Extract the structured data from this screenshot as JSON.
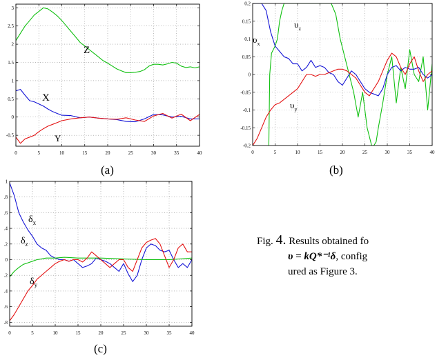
{
  "colors": {
    "x": "#1515d6",
    "y": "#e41414",
    "z": "#10c010",
    "grid": "#8c8c8c",
    "axes": "#000000"
  },
  "panels": [
    {
      "caption": "(a)",
      "chart_data": {
        "type": "line",
        "xlim": [
          0,
          40
        ],
        "ylim": [
          -0.8,
          3.1
        ],
        "xticks": [
          0,
          5,
          10,
          15,
          20,
          25,
          30,
          35,
          40
        ],
        "yticks": [
          -0.5,
          0,
          0.5,
          1,
          1.5,
          2,
          2.5,
          3
        ],
        "yticklabels": [
          "-0.5",
          "0",
          "0.5",
          "1",
          "1.5",
          "2",
          "2.5",
          "3"
        ],
        "grid": true,
        "series": [
          {
            "name": "Z",
            "color": "z",
            "x": [
              0,
              1,
              2,
              3,
              4,
              5,
              6,
              7,
              8,
              9,
              10,
              11,
              12,
              13,
              14,
              15,
              16,
              17,
              18,
              19,
              20,
              21,
              22,
              23,
              24,
              25,
              26,
              27,
              28,
              29,
              30,
              31,
              32,
              33,
              34,
              35,
              36,
              37,
              38,
              39,
              40
            ],
            "y": [
              2.1,
              2.3,
              2.5,
              2.65,
              2.8,
              2.9,
              3.0,
              2.97,
              2.88,
              2.78,
              2.65,
              2.5,
              2.35,
              2.2,
              2.05,
              1.95,
              1.85,
              1.75,
              1.65,
              1.55,
              1.48,
              1.4,
              1.32,
              1.27,
              1.22,
              1.22,
              1.23,
              1.25,
              1.3,
              1.4,
              1.45,
              1.45,
              1.43,
              1.46,
              1.5,
              1.48,
              1.4,
              1.36,
              1.38,
              1.35,
              1.38
            ]
          },
          {
            "name": "X",
            "color": "x",
            "x": [
              0,
              1,
              2,
              3,
              4,
              5,
              6,
              7,
              8,
              9,
              10,
              12,
              14,
              16,
              18,
              20,
              22,
              24,
              26,
              28,
              30,
              32,
              34,
              36,
              38,
              40
            ],
            "y": [
              0.72,
              0.76,
              0.6,
              0.45,
              0.42,
              0.36,
              0.3,
              0.22,
              0.15,
              0.1,
              0.05,
              0.04,
              -0.02,
              0.0,
              -0.03,
              -0.05,
              -0.07,
              -0.12,
              -0.13,
              -0.05,
              0.07,
              0.06,
              0.0,
              0.02,
              -0.05,
              -0.05
            ]
          },
          {
            "name": "Y",
            "color": "y",
            "x": [
              0,
              1,
              2,
              3,
              4,
              5,
              6,
              7,
              8,
              9,
              10,
              12,
              14,
              16,
              18,
              20,
              22,
              24,
              26,
              28,
              30,
              32,
              34,
              36,
              38,
              40
            ],
            "y": [
              -0.55,
              -0.72,
              -0.6,
              -0.55,
              -0.5,
              -0.4,
              -0.32,
              -0.25,
              -0.2,
              -0.15,
              -0.1,
              -0.05,
              -0.02,
              0.0,
              -0.03,
              -0.05,
              -0.06,
              -0.02,
              -0.08,
              -0.12,
              0.03,
              0.1,
              -0.03,
              0.08,
              -0.1,
              0.07
            ]
          }
        ]
      }
    },
    {
      "caption": "(b)",
      "chart_data": {
        "type": "line",
        "xlim": [
          0,
          40
        ],
        "ylim": [
          -0.2,
          0.2
        ],
        "xticks": [
          0,
          5,
          10,
          15,
          20,
          25,
          30,
          35,
          40
        ],
        "xticklabels": [
          "0",
          "5",
          "10",
          "15",
          "20",
          "25",
          "30",
          "35",
          "40"
        ],
        "yticks": [
          -0.2,
          -0.15,
          -0.1,
          -0.05,
          0,
          0.05,
          0.1,
          0.15,
          0.2
        ],
        "yticklabels": [
          "-0.2",
          "-0.15",
          "-0.1",
          "-0.05",
          "0",
          "0.05",
          "0.1",
          "0.15",
          "0.2"
        ],
        "grid": true,
        "series": [
          {
            "name": "υz",
            "color": "z",
            "x": [
              3.6,
              3.8,
              4.2,
              5,
              5.5,
              6,
              6.5,
              7,
              8,
              9,
              10,
              12,
              14,
              16,
              17.5,
              18.5,
              19.5,
              20.5,
              21.5,
              22.5,
              23.5,
              24.5,
              25.5,
              26.5,
              27,
              27.5,
              28,
              29,
              30,
              31,
              32,
              33,
              34,
              35,
              36,
              37,
              38,
              39,
              40
            ],
            "y": [
              -0.2,
              0.0,
              0.06,
              0.08,
              0.1,
              0.15,
              0.18,
              0.2,
              0.2,
              0.2,
              0.2,
              0.2,
              0.2,
              0.2,
              0.2,
              0.17,
              0.1,
              0.05,
              0.0,
              -0.05,
              -0.12,
              -0.05,
              -0.15,
              -0.2,
              -0.2,
              -0.19,
              -0.15,
              -0.08,
              0.0,
              0.05,
              -0.08,
              0.02,
              -0.04,
              0.07,
              0.0,
              -0.02,
              0.05,
              -0.1,
              0.03
            ]
          },
          {
            "name": "υx",
            "color": "x",
            "x": [
              0,
              1,
              2,
              3,
              4,
              5,
              6,
              7,
              8,
              9,
              10,
              11,
              12,
              13,
              14,
              15,
              16,
              17,
              18,
              19,
              20,
              21,
              22,
              23,
              24,
              25,
              26,
              27,
              28,
              29,
              30,
              31,
              32,
              33,
              34,
              35,
              36,
              37,
              38,
              39,
              40
            ],
            "y": [
              0.2,
              0.2,
              0.2,
              0.18,
              0.12,
              0.08,
              0.065,
              0.05,
              0.045,
              0.03,
              0.03,
              0.01,
              0.02,
              0.04,
              0.02,
              0.025,
              0.02,
              0.005,
              0.0,
              -0.02,
              -0.03,
              -0.01,
              0.01,
              0.0,
              -0.02,
              -0.04,
              -0.05,
              -0.055,
              -0.06,
              -0.04,
              0.0,
              0.02,
              0.025,
              0.01,
              0.02,
              0.015,
              0.015,
              0.02,
              0.0,
              -0.01,
              0.0
            ]
          },
          {
            "name": "υy",
            "color": "y",
            "x": [
              0,
              1,
              2,
              3,
              4,
              5,
              6,
              7,
              8,
              9,
              10,
              11,
              12,
              13,
              14,
              15,
              16,
              17,
              18,
              19,
              20,
              21,
              22,
              23,
              24,
              25,
              26,
              27,
              28,
              29,
              30,
              31,
              32,
              33,
              34,
              35,
              36,
              37,
              38,
              39,
              40
            ],
            "y": [
              -0.2,
              -0.18,
              -0.15,
              -0.12,
              -0.1,
              -0.085,
              -0.08,
              -0.07,
              -0.06,
              -0.05,
              -0.04,
              -0.02,
              0.0,
              0.0,
              -0.005,
              0.0,
              0.0,
              0.005,
              0.01,
              0.015,
              0.015,
              0.01,
              0.0,
              -0.01,
              -0.03,
              -0.05,
              -0.06,
              -0.04,
              -0.02,
              0.01,
              0.04,
              0.06,
              0.05,
              0.02,
              0.0,
              0.03,
              0.05,
              0.01,
              -0.02,
              0.0,
              0.01
            ]
          }
        ]
      }
    },
    {
      "caption": "(c)",
      "chart_data": {
        "type": "line",
        "xlim": [
          0,
          40
        ],
        "ylim": [
          -0.85,
          1.0
        ],
        "xticks": [
          0,
          5,
          10,
          15,
          20,
          25,
          30,
          35,
          40
        ],
        "yticks": [
          -0.8,
          -0.6,
          -0.4,
          -0.2,
          0,
          0.2,
          0.4,
          0.6,
          0.8,
          1
        ],
        "yticklabels": [
          ".8",
          ".6",
          ".4",
          ".2",
          "0",
          ".2",
          ".4",
          ".6",
          ".8",
          "1"
        ],
        "grid": true,
        "series": [
          {
            "name": "δx",
            "color": "x",
            "x": [
              0,
              1,
              2,
              3,
              4,
              5,
              6,
              7,
              8,
              9,
              10,
              11,
              12,
              13,
              14,
              15,
              16,
              17,
              18,
              19,
              20,
              21,
              22,
              23,
              24,
              25,
              26,
              27,
              28,
              29,
              30,
              31,
              32,
              33,
              34,
              35,
              36,
              37,
              38,
              39,
              40
            ],
            "y": [
              0.98,
              0.82,
              0.6,
              0.48,
              0.38,
              0.3,
              0.2,
              0.15,
              0.12,
              0.05,
              0.02,
              0.0,
              0.0,
              -0.02,
              0.0,
              -0.05,
              -0.1,
              -0.08,
              -0.05,
              0.02,
              0.0,
              -0.02,
              -0.05,
              -0.1,
              -0.15,
              -0.05,
              -0.18,
              -0.28,
              -0.2,
              0.0,
              0.15,
              0.2,
              0.18,
              0.12,
              0.1,
              0.12,
              0.0,
              -0.1,
              -0.05,
              -0.1,
              0.0
            ]
          },
          {
            "name": "δz",
            "color": "z",
            "x": [
              0,
              1,
              2,
              3,
              4,
              5,
              6,
              7,
              8,
              10,
              12,
              15,
              20,
              25,
              30,
              35,
              40
            ],
            "y": [
              -0.22,
              -0.15,
              -0.1,
              -0.06,
              -0.04,
              -0.02,
              0.0,
              0.01,
              0.02,
              0.02,
              0.03,
              0.02,
              0.02,
              0.01,
              0.0,
              0.0,
              0.02
            ]
          },
          {
            "name": "δy",
            "color": "y",
            "x": [
              0,
              1,
              2,
              3,
              4,
              5,
              6,
              7,
              8,
              9,
              10,
              11,
              12,
              13,
              14,
              15,
              16,
              17,
              18,
              19,
              20,
              21,
              22,
              23,
              24,
              25,
              26,
              27,
              28,
              29,
              30,
              31,
              32,
              33,
              34,
              35,
              36,
              37,
              38,
              39,
              40
            ],
            "y": [
              -0.78,
              -0.7,
              -0.6,
              -0.5,
              -0.4,
              -0.33,
              -0.25,
              -0.2,
              -0.15,
              -0.1,
              -0.05,
              -0.02,
              0.0,
              -0.02,
              0.0,
              0.0,
              -0.03,
              0.02,
              0.1,
              0.05,
              0.0,
              -0.05,
              -0.1,
              -0.05,
              0.0,
              0.0,
              -0.1,
              -0.15,
              0.0,
              0.15,
              0.22,
              0.25,
              0.27,
              0.2,
              0.05,
              -0.1,
              0.0,
              0.15,
              0.2,
              0.1,
              0.1
            ]
          }
        ]
      }
    }
  ],
  "figure_caption": {
    "prefix": "Fig.",
    "number": "4.",
    "text_line1": "Results obtained fo",
    "math": "υ = kQ*⁻¹δ",
    "text_line2": ", config",
    "text_line3": "ured as Figure 3."
  }
}
